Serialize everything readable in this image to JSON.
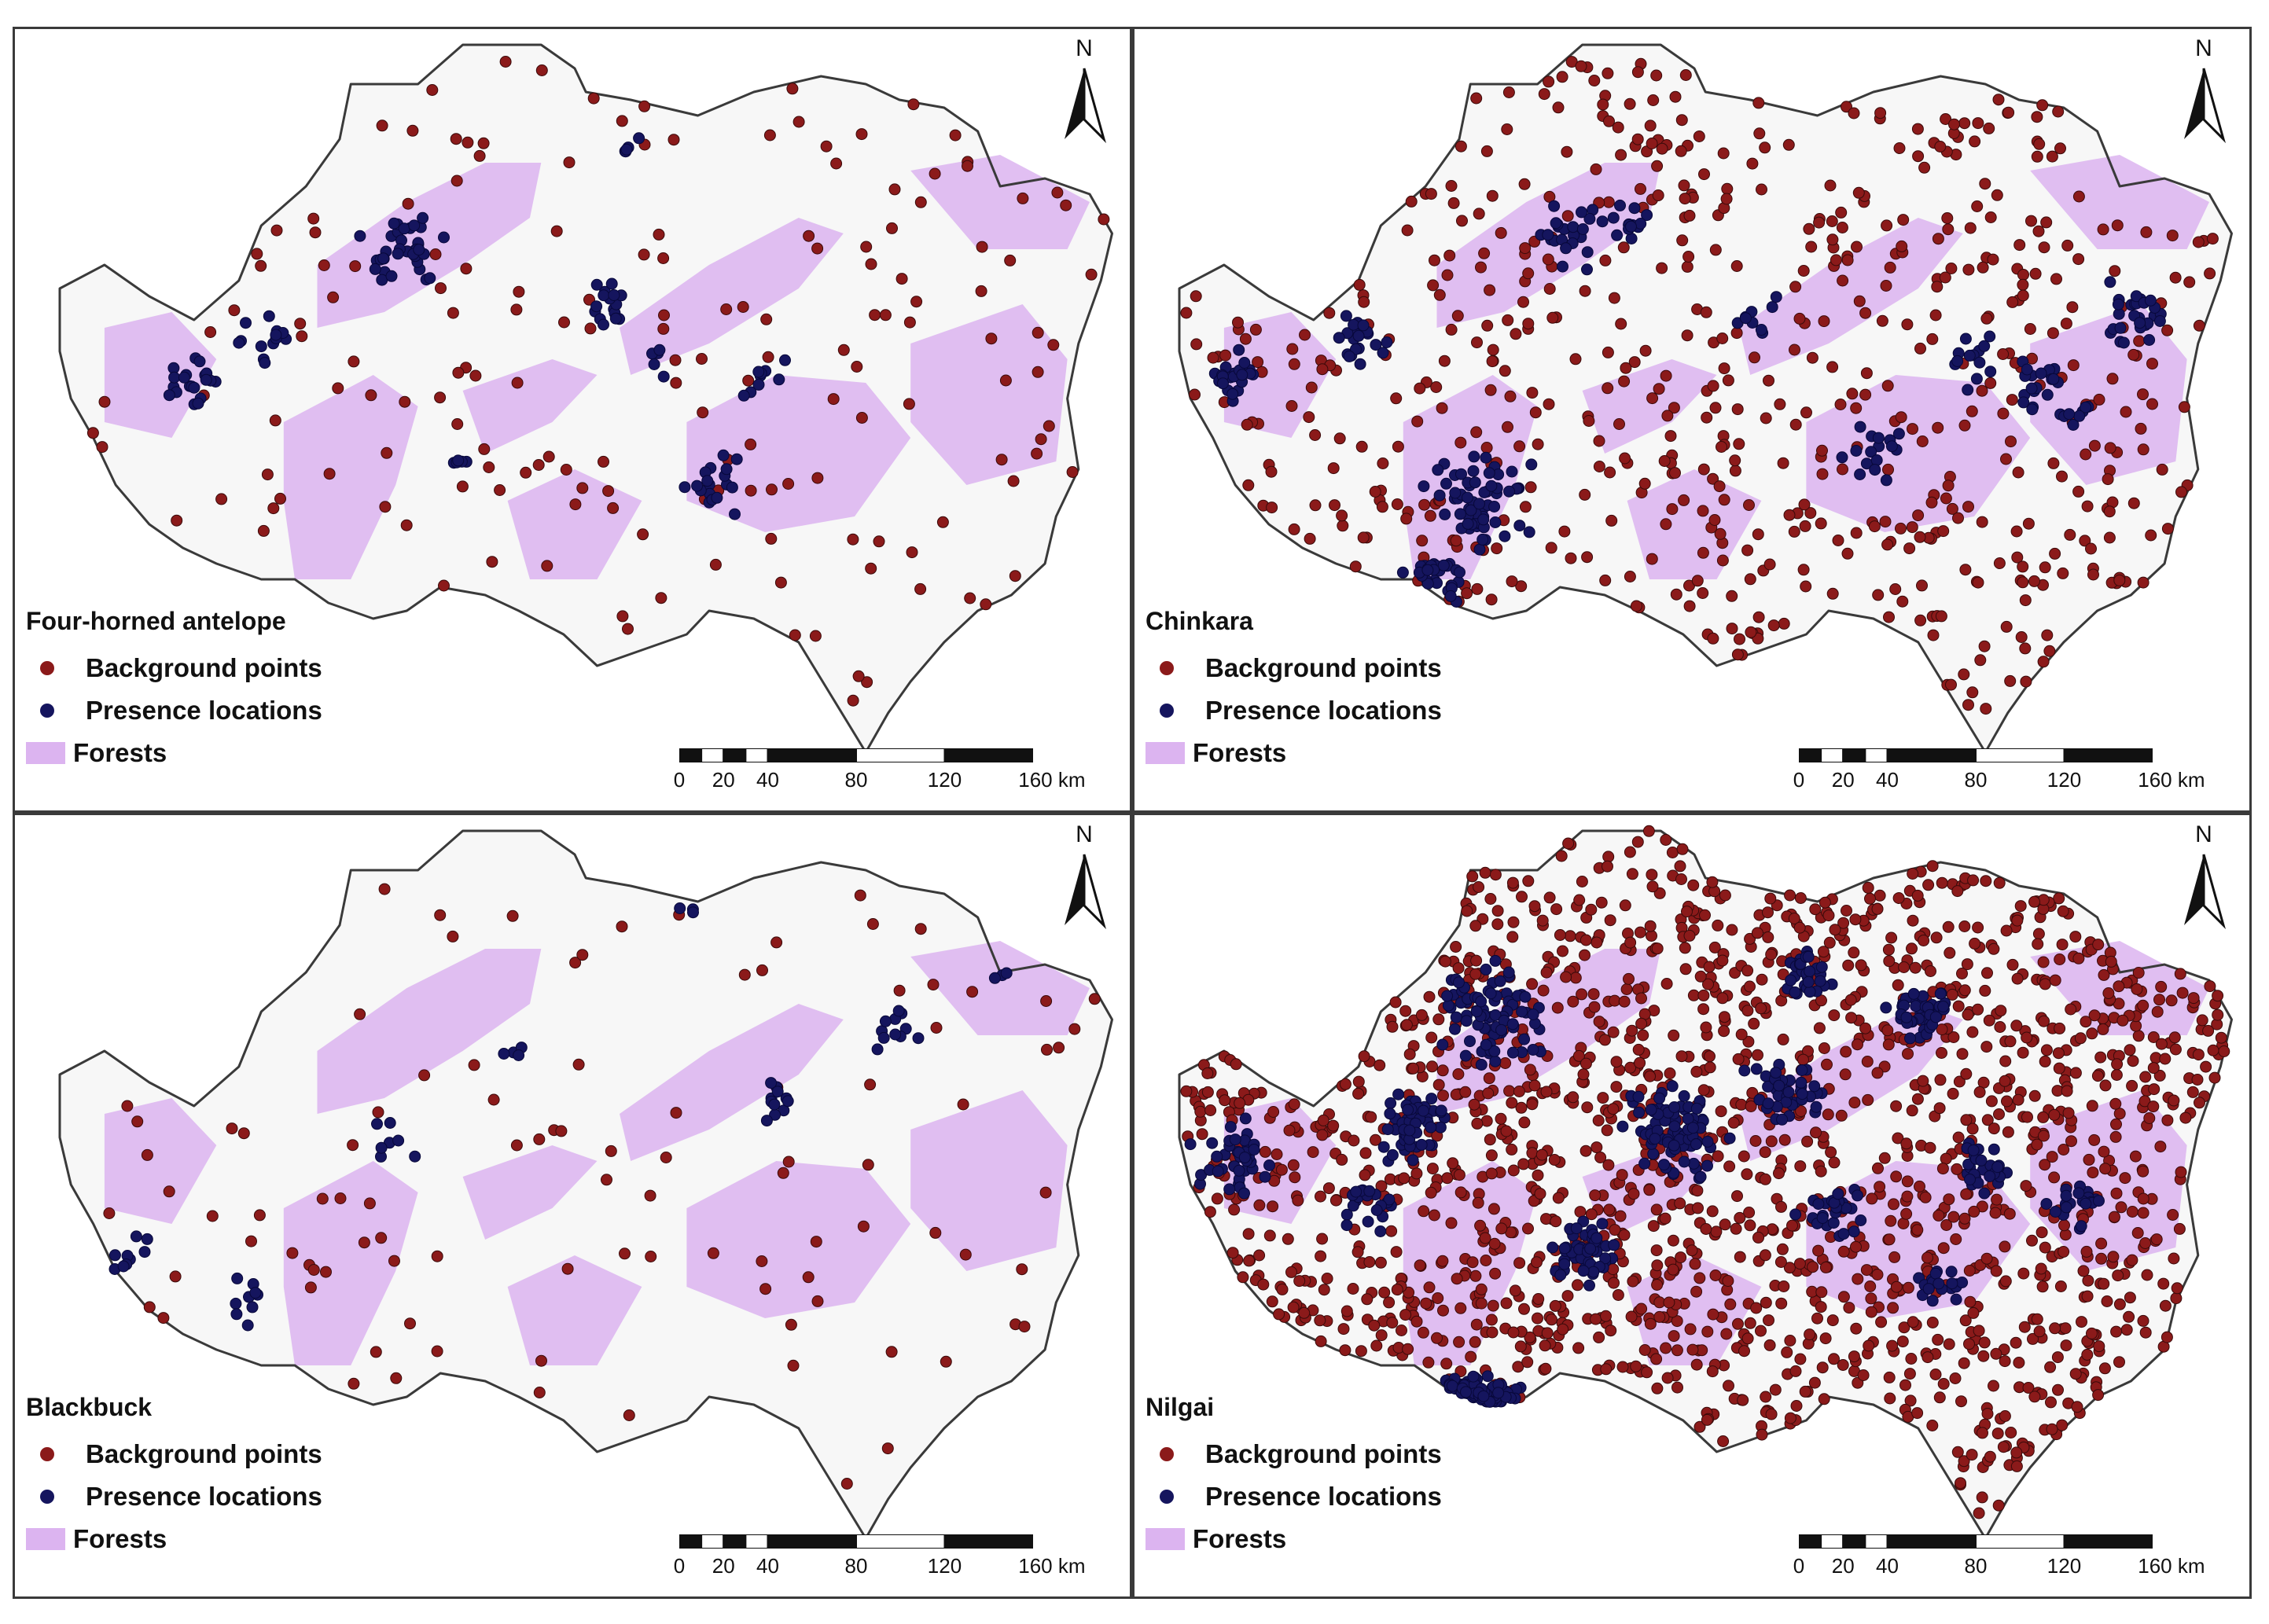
{
  "panels": [
    {
      "species": "Four-horned antelope",
      "seed": 11,
      "n_background": 170,
      "n_presence": 130,
      "presence_clusters": [
        [
          0.34,
          0.28,
          18,
          40
        ],
        [
          0.53,
          0.35,
          12,
          18
        ],
        [
          0.16,
          0.45,
          12,
          22
        ],
        [
          0.22,
          0.4,
          14,
          14
        ],
        [
          0.63,
          0.58,
          14,
          20
        ],
        [
          0.67,
          0.44,
          10,
          10
        ],
        [
          0.57,
          0.42,
          8,
          6
        ],
        [
          0.4,
          0.55,
          8,
          6
        ],
        [
          0.55,
          0.15,
          6,
          6
        ]
      ]
    },
    {
      "species": "Chinkara",
      "seed": 23,
      "n_background": 620,
      "n_presence": 260,
      "presence_clusters": [
        [
          0.31,
          0.6,
          22,
          70
        ],
        [
          0.27,
          0.7,
          14,
          30
        ],
        [
          0.09,
          0.45,
          14,
          26
        ],
        [
          0.2,
          0.4,
          12,
          22
        ],
        [
          0.39,
          0.26,
          14,
          26
        ],
        [
          0.44,
          0.25,
          10,
          14
        ],
        [
          0.56,
          0.36,
          10,
          10
        ],
        [
          0.66,
          0.54,
          12,
          18
        ],
        [
          0.75,
          0.42,
          12,
          14
        ],
        [
          0.81,
          0.45,
          14,
          22
        ],
        [
          0.89,
          0.36,
          16,
          30
        ],
        [
          0.84,
          0.49,
          8,
          8
        ]
      ]
    },
    {
      "species": "Blackbuck",
      "seed": 37,
      "n_background": 100,
      "n_presence": 70,
      "presence_clusters": [
        [
          0.78,
          0.27,
          14,
          12
        ],
        [
          0.68,
          0.36,
          10,
          12
        ],
        [
          0.21,
          0.62,
          10,
          10
        ],
        [
          0.24,
          0.78,
          10,
          10
        ],
        [
          0.1,
          0.55,
          14,
          10
        ],
        [
          0.33,
          0.42,
          12,
          8
        ],
        [
          0.45,
          0.3,
          8,
          4
        ],
        [
          0.6,
          0.12,
          6,
          3
        ],
        [
          0.88,
          0.2,
          6,
          3
        ],
        [
          0.4,
          0.75,
          6,
          6
        ]
      ]
    },
    {
      "species": "Nilgai",
      "seed": 53,
      "n_background": 1700,
      "n_presence": 620,
      "presence_clusters": [
        [
          0.32,
          0.25,
          22,
          80
        ],
        [
          0.25,
          0.4,
          16,
          50
        ],
        [
          0.09,
          0.44,
          16,
          40
        ],
        [
          0.3,
          0.78,
          20,
          90
        ],
        [
          0.4,
          0.56,
          16,
          50
        ],
        [
          0.48,
          0.4,
          22,
          80
        ],
        [
          0.58,
          0.35,
          16,
          40
        ],
        [
          0.7,
          0.25,
          14,
          40
        ],
        [
          0.62,
          0.5,
          14,
          30
        ],
        [
          0.76,
          0.45,
          12,
          30
        ],
        [
          0.6,
          0.2,
          12,
          30
        ],
        [
          0.21,
          0.49,
          12,
          20
        ],
        [
          0.84,
          0.5,
          12,
          20
        ],
        [
          0.72,
          0.6,
          10,
          20
        ]
      ]
    }
  ],
  "legend": {
    "background_label": "Background points",
    "presence_label": "Presence locations",
    "forest_label": "Forests"
  },
  "north_arrow": {
    "label": "N"
  },
  "scale_bar": {
    "ticks": [
      "0",
      "20",
      "40",
      "80",
      "120",
      "160 km"
    ],
    "tick_values": [
      0,
      20,
      40,
      80,
      120,
      160
    ]
  },
  "colors": {
    "background_point": "#8b1a1a",
    "presence_point": "#15155e",
    "forest": "#dcb4f0",
    "boundary": "#3a3a3a"
  }
}
